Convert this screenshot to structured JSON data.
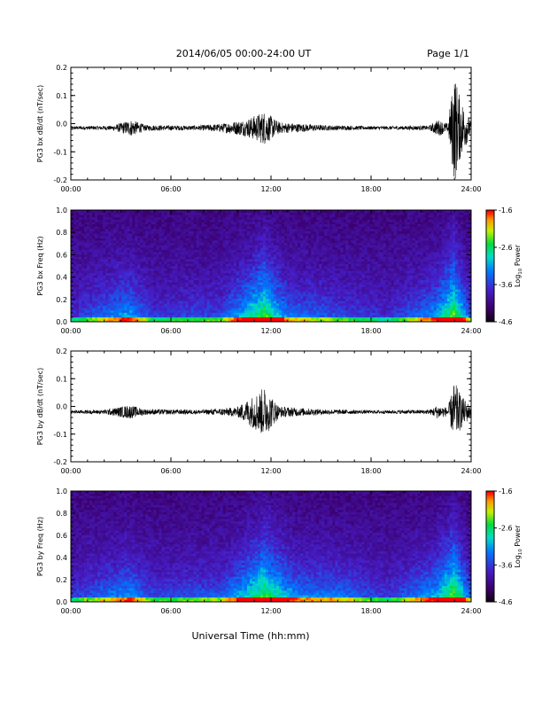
{
  "header": {
    "title": "2014/06/05  00:00-24:00 UT",
    "page": "Page 1/1"
  },
  "footer": {
    "xlabel": "Universal Time (hh:mm)"
  },
  "colorbar_label": "Log",
  "colorbar_sub": "10",
  "colorbar_tail": " Power",
  "colors": {
    "background": "#ffffff",
    "trace": "#000000",
    "spectrogram_low": "#2a004a",
    "spectrogram_high": "#ff0000"
  },
  "chart_data": [
    {
      "type": "line",
      "ylabel": "PG3 bx dB/dt (nT/sec)",
      "xlim": [
        0,
        24
      ],
      "ylim": [
        -0.2,
        0.2
      ],
      "x_ticks": [
        "00:00",
        "06:00",
        "12:00",
        "18:00",
        "24:00"
      ],
      "y_ticks": [
        "0.2",
        "0.1",
        "0.0",
        "-0.1",
        "-0.2"
      ],
      "y_tick_values": [
        0.2,
        0.1,
        0.0,
        -0.1,
        -0.2
      ],
      "baseline": -0.015,
      "envelope": [
        {
          "hour": 0.0,
          "amp": 0.006
        },
        {
          "hour": 2.5,
          "amp": 0.008
        },
        {
          "hour": 3.6,
          "amp": 0.03
        },
        {
          "hour": 4.5,
          "amp": 0.01
        },
        {
          "hour": 7.5,
          "amp": 0.008
        },
        {
          "hour": 9.0,
          "amp": 0.015
        },
        {
          "hour": 10.5,
          "amp": 0.03
        },
        {
          "hour": 11.6,
          "amp": 0.06
        },
        {
          "hour": 12.5,
          "amp": 0.02
        },
        {
          "hour": 15.0,
          "amp": 0.01
        },
        {
          "hour": 18.0,
          "amp": 0.006
        },
        {
          "hour": 21.5,
          "amp": 0.008
        },
        {
          "hour": 22.0,
          "amp": 0.03
        },
        {
          "hour": 22.6,
          "amp": 0.015
        },
        {
          "hour": 23.0,
          "amp": 0.2
        },
        {
          "hour": 23.3,
          "amp": 0.12
        },
        {
          "hour": 24.0,
          "amp": 0.02
        }
      ]
    },
    {
      "type": "heatmap",
      "ylabel": "PG3 bx Freq (Hz)",
      "xlim": [
        0,
        24
      ],
      "ylim": [
        0.0,
        1.0
      ],
      "x_ticks": [
        "00:00",
        "06:00",
        "12:00",
        "18:00",
        "24:00"
      ],
      "y_ticks": [
        "1.0",
        "0.8",
        "0.6",
        "0.4",
        "0.2",
        "0.0"
      ],
      "y_tick_values": [
        1.0,
        0.8,
        0.6,
        0.4,
        0.2,
        0.0
      ],
      "colorbar_ticks": [
        "-1.6",
        "-2.6",
        "-3.6",
        "-4.6"
      ],
      "colorbar_values": [
        -1.6,
        -2.6,
        -3.6,
        -4.6
      ],
      "zlim": [
        -4.6,
        -1.6
      ],
      "activity": [
        {
          "hour": 0.0,
          "level": 0.15
        },
        {
          "hour": 3.5,
          "level": 0.6
        },
        {
          "hour": 5.0,
          "level": 0.2
        },
        {
          "hour": 9.0,
          "level": 0.3
        },
        {
          "hour": 11.6,
          "level": 0.95
        },
        {
          "hour": 13.0,
          "level": 0.45
        },
        {
          "hour": 16.0,
          "level": 0.3
        },
        {
          "hour": 19.0,
          "level": 0.15
        },
        {
          "hour": 21.8,
          "level": 0.55
        },
        {
          "hour": 23.0,
          "level": 1.0
        },
        {
          "hour": 24.0,
          "level": 0.3
        }
      ]
    },
    {
      "type": "line",
      "ylabel": "PG3 by dB/dt (nT/sec)",
      "xlim": [
        0,
        24
      ],
      "ylim": [
        -0.2,
        0.2
      ],
      "x_ticks": [
        "00:00",
        "06:00",
        "12:00",
        "18:00",
        "24:00"
      ],
      "y_ticks": [
        "0.2",
        "0.1",
        "0.0",
        "-0.1",
        "-0.2"
      ],
      "y_tick_values": [
        0.2,
        0.1,
        0.0,
        -0.1,
        -0.2
      ],
      "baseline": -0.02,
      "envelope": [
        {
          "hour": 0.0,
          "amp": 0.006
        },
        {
          "hour": 2.0,
          "amp": 0.008
        },
        {
          "hour": 3.5,
          "amp": 0.025
        },
        {
          "hour": 4.5,
          "amp": 0.01
        },
        {
          "hour": 8.0,
          "amp": 0.008
        },
        {
          "hour": 10.0,
          "amp": 0.018
        },
        {
          "hour": 11.6,
          "amp": 0.09
        },
        {
          "hour": 12.5,
          "amp": 0.02
        },
        {
          "hour": 15.0,
          "amp": 0.01
        },
        {
          "hour": 18.0,
          "amp": 0.006
        },
        {
          "hour": 21.5,
          "amp": 0.008
        },
        {
          "hour": 22.0,
          "amp": 0.025
        },
        {
          "hour": 22.6,
          "amp": 0.015
        },
        {
          "hour": 23.0,
          "amp": 0.11
        },
        {
          "hour": 23.4,
          "amp": 0.06
        },
        {
          "hour": 24.0,
          "amp": 0.02
        }
      ]
    },
    {
      "type": "heatmap",
      "ylabel": "PG3 by Freq (Hz)",
      "xlim": [
        0,
        24
      ],
      "ylim": [
        0.0,
        1.0
      ],
      "x_ticks": [
        "00:00",
        "06:00",
        "12:00",
        "18:00",
        "24:00"
      ],
      "y_ticks": [
        "1.0",
        "0.8",
        "0.6",
        "0.4",
        "0.2",
        "0.0"
      ],
      "y_tick_values": [
        1.0,
        0.8,
        0.6,
        0.4,
        0.2,
        0.0
      ],
      "colorbar_ticks": [
        "-1.6",
        "-2.6",
        "-3.6",
        "-4.6"
      ],
      "colorbar_values": [
        -1.6,
        -2.6,
        -3.6,
        -4.6
      ],
      "zlim": [
        -4.6,
        -1.6
      ],
      "activity": [
        {
          "hour": 0.0,
          "level": 0.2
        },
        {
          "hour": 3.5,
          "level": 0.55
        },
        {
          "hour": 5.0,
          "level": 0.25
        },
        {
          "hour": 9.0,
          "level": 0.35
        },
        {
          "hour": 11.6,
          "level": 0.95
        },
        {
          "hour": 13.5,
          "level": 0.5
        },
        {
          "hour": 16.0,
          "level": 0.45
        },
        {
          "hour": 19.0,
          "level": 0.2
        },
        {
          "hour": 21.8,
          "level": 0.6
        },
        {
          "hour": 23.0,
          "level": 1.0
        },
        {
          "hour": 24.0,
          "level": 0.35
        }
      ]
    }
  ]
}
